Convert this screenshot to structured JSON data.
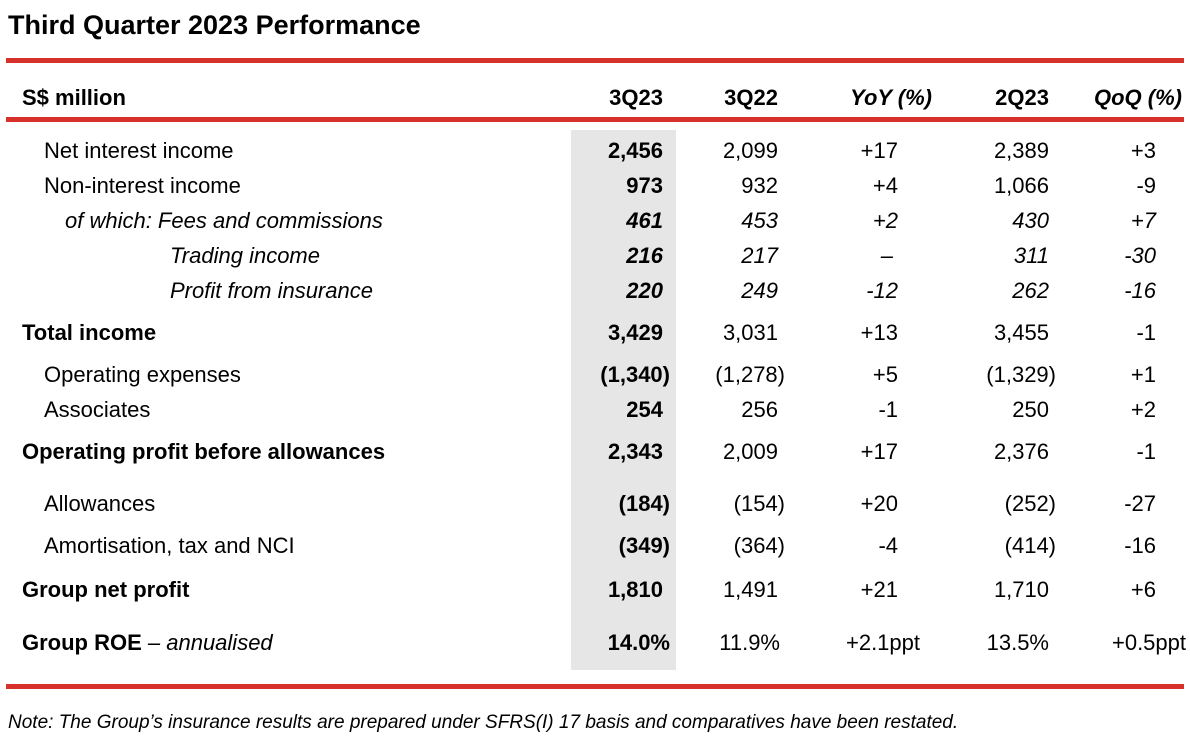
{
  "title": "Third Quarter 2023 Performance",
  "colors": {
    "accent_rule": "#d6312b",
    "highlight_column": "#e6e6e6"
  },
  "columns": {
    "label": "S$ million",
    "c1": "3Q23",
    "c2": "3Q22",
    "c3": "YoY (%)",
    "c4": "2Q23",
    "c5": "QoQ (%)"
  },
  "rows": [
    {
      "label": "Net interest income",
      "c1": "2,456",
      "c2": "2,099",
      "c3": "+17",
      "c4": "2,389",
      "c5": "+3"
    },
    {
      "label": "Non-interest income",
      "c1": "973",
      "c2": "932",
      "c3": "+4",
      "c4": "1,066",
      "c5": "-9"
    },
    {
      "label": "of which: Fees and commissions",
      "c1": "461",
      "c2": "453",
      "c3": "+2",
      "c4": "430",
      "c5": "+7"
    },
    {
      "label": "Trading income",
      "c1": "216",
      "c2": "217",
      "c3": "–",
      "c4": "311",
      "c5": "-30"
    },
    {
      "label": "Profit from insurance",
      "c1": "220",
      "c2": "249",
      "c3": "-12",
      "c4": "262",
      "c5": "-16"
    },
    {
      "label": "Total income",
      "c1": "3,429",
      "c2": "3,031",
      "c3": "+13",
      "c4": "3,455",
      "c5": "-1"
    },
    {
      "label": "Operating expenses",
      "c1": "(1,340)",
      "c2": "(1,278)",
      "c3": "+5",
      "c4": "(1,329)",
      "c5": "+1"
    },
    {
      "label": "Associates",
      "c1": "254",
      "c2": "256",
      "c3": "-1",
      "c4": "250",
      "c5": "+2"
    },
    {
      "label": "Operating profit before allowances",
      "c1": "2,343",
      "c2": "2,009",
      "c3": "+17",
      "c4": "2,376",
      "c5": "-1"
    },
    {
      "label": "Allowances",
      "c1": "(184)",
      "c2": "(154)",
      "c3": "+20",
      "c4": "(252)",
      "c5": "-27"
    },
    {
      "label": "Amortisation, tax and NCI",
      "c1": "(349)",
      "c2": "(364)",
      "c3": "-4",
      "c4": "(414)",
      "c5": "-16"
    },
    {
      "label": "Group net profit",
      "c1": "1,810",
      "c2": "1,491",
      "c3": "+21",
      "c4": "1,710",
      "c5": "+6"
    },
    {
      "label": "Group ROE",
      "label_suffix": " – annualised",
      "c1": "14.0%",
      "c2": "11.9%",
      "c3": "+2.1ppt",
      "c4": "13.5%",
      "c5": "+0.5ppt"
    }
  ],
  "note": "Note: The Group’s insurance results are prepared under SFRS(I) 17 basis and comparatives have been restated."
}
